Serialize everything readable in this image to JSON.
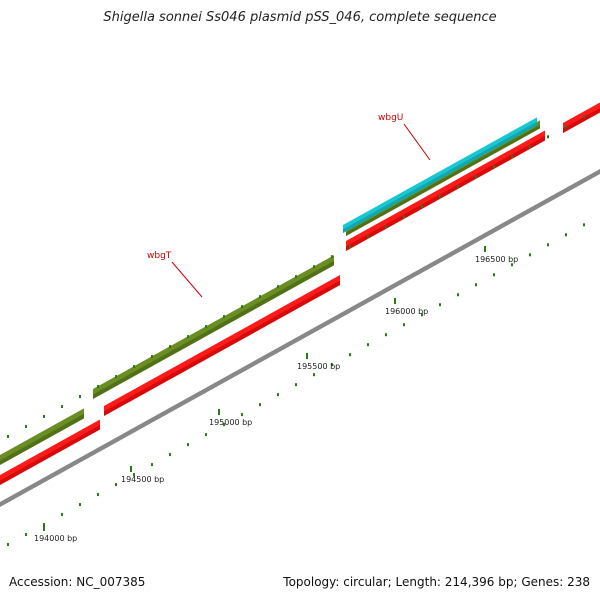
{
  "title": "Shigella sonnei Ss046 plasmid pSS_046, complete sequence",
  "footer": {
    "accession": "Accession: NC_007385",
    "summary": "Topology: circular; Length: 214,396 bp; Genes: 238"
  },
  "map": {
    "backbone_color": "#888888",
    "ticks": [
      {
        "label": "194000 bp"
      },
      {
        "label": "194500 bp"
      },
      {
        "label": "195000 bp"
      },
      {
        "label": "195500 bp"
      },
      {
        "label": "196000 bp"
      },
      {
        "label": "196500 bp"
      }
    ],
    "features": [
      {
        "type": "CDS",
        "strand": "forward",
        "color": "#ff1a1a"
      },
      {
        "type": "CDS",
        "strand": "forward",
        "color": "#ff1a1a"
      },
      {
        "type": "CDS",
        "strand": "forward",
        "color": "#ff1a1a"
      },
      {
        "type": "CDS",
        "strand": "forward",
        "color": "#ff1a1a"
      },
      {
        "type": "gene",
        "name": "wbgT",
        "color": "#6b8e23"
      },
      {
        "type": "gene",
        "color": "#6b8e23"
      },
      {
        "type": "gene",
        "name": "wbgU",
        "color": "#6b8e23"
      },
      {
        "type": "orf",
        "color": "#17c7d1"
      }
    ],
    "gene_labels": [
      {
        "text": "wbgT"
      },
      {
        "text": "wbgU"
      }
    ]
  }
}
